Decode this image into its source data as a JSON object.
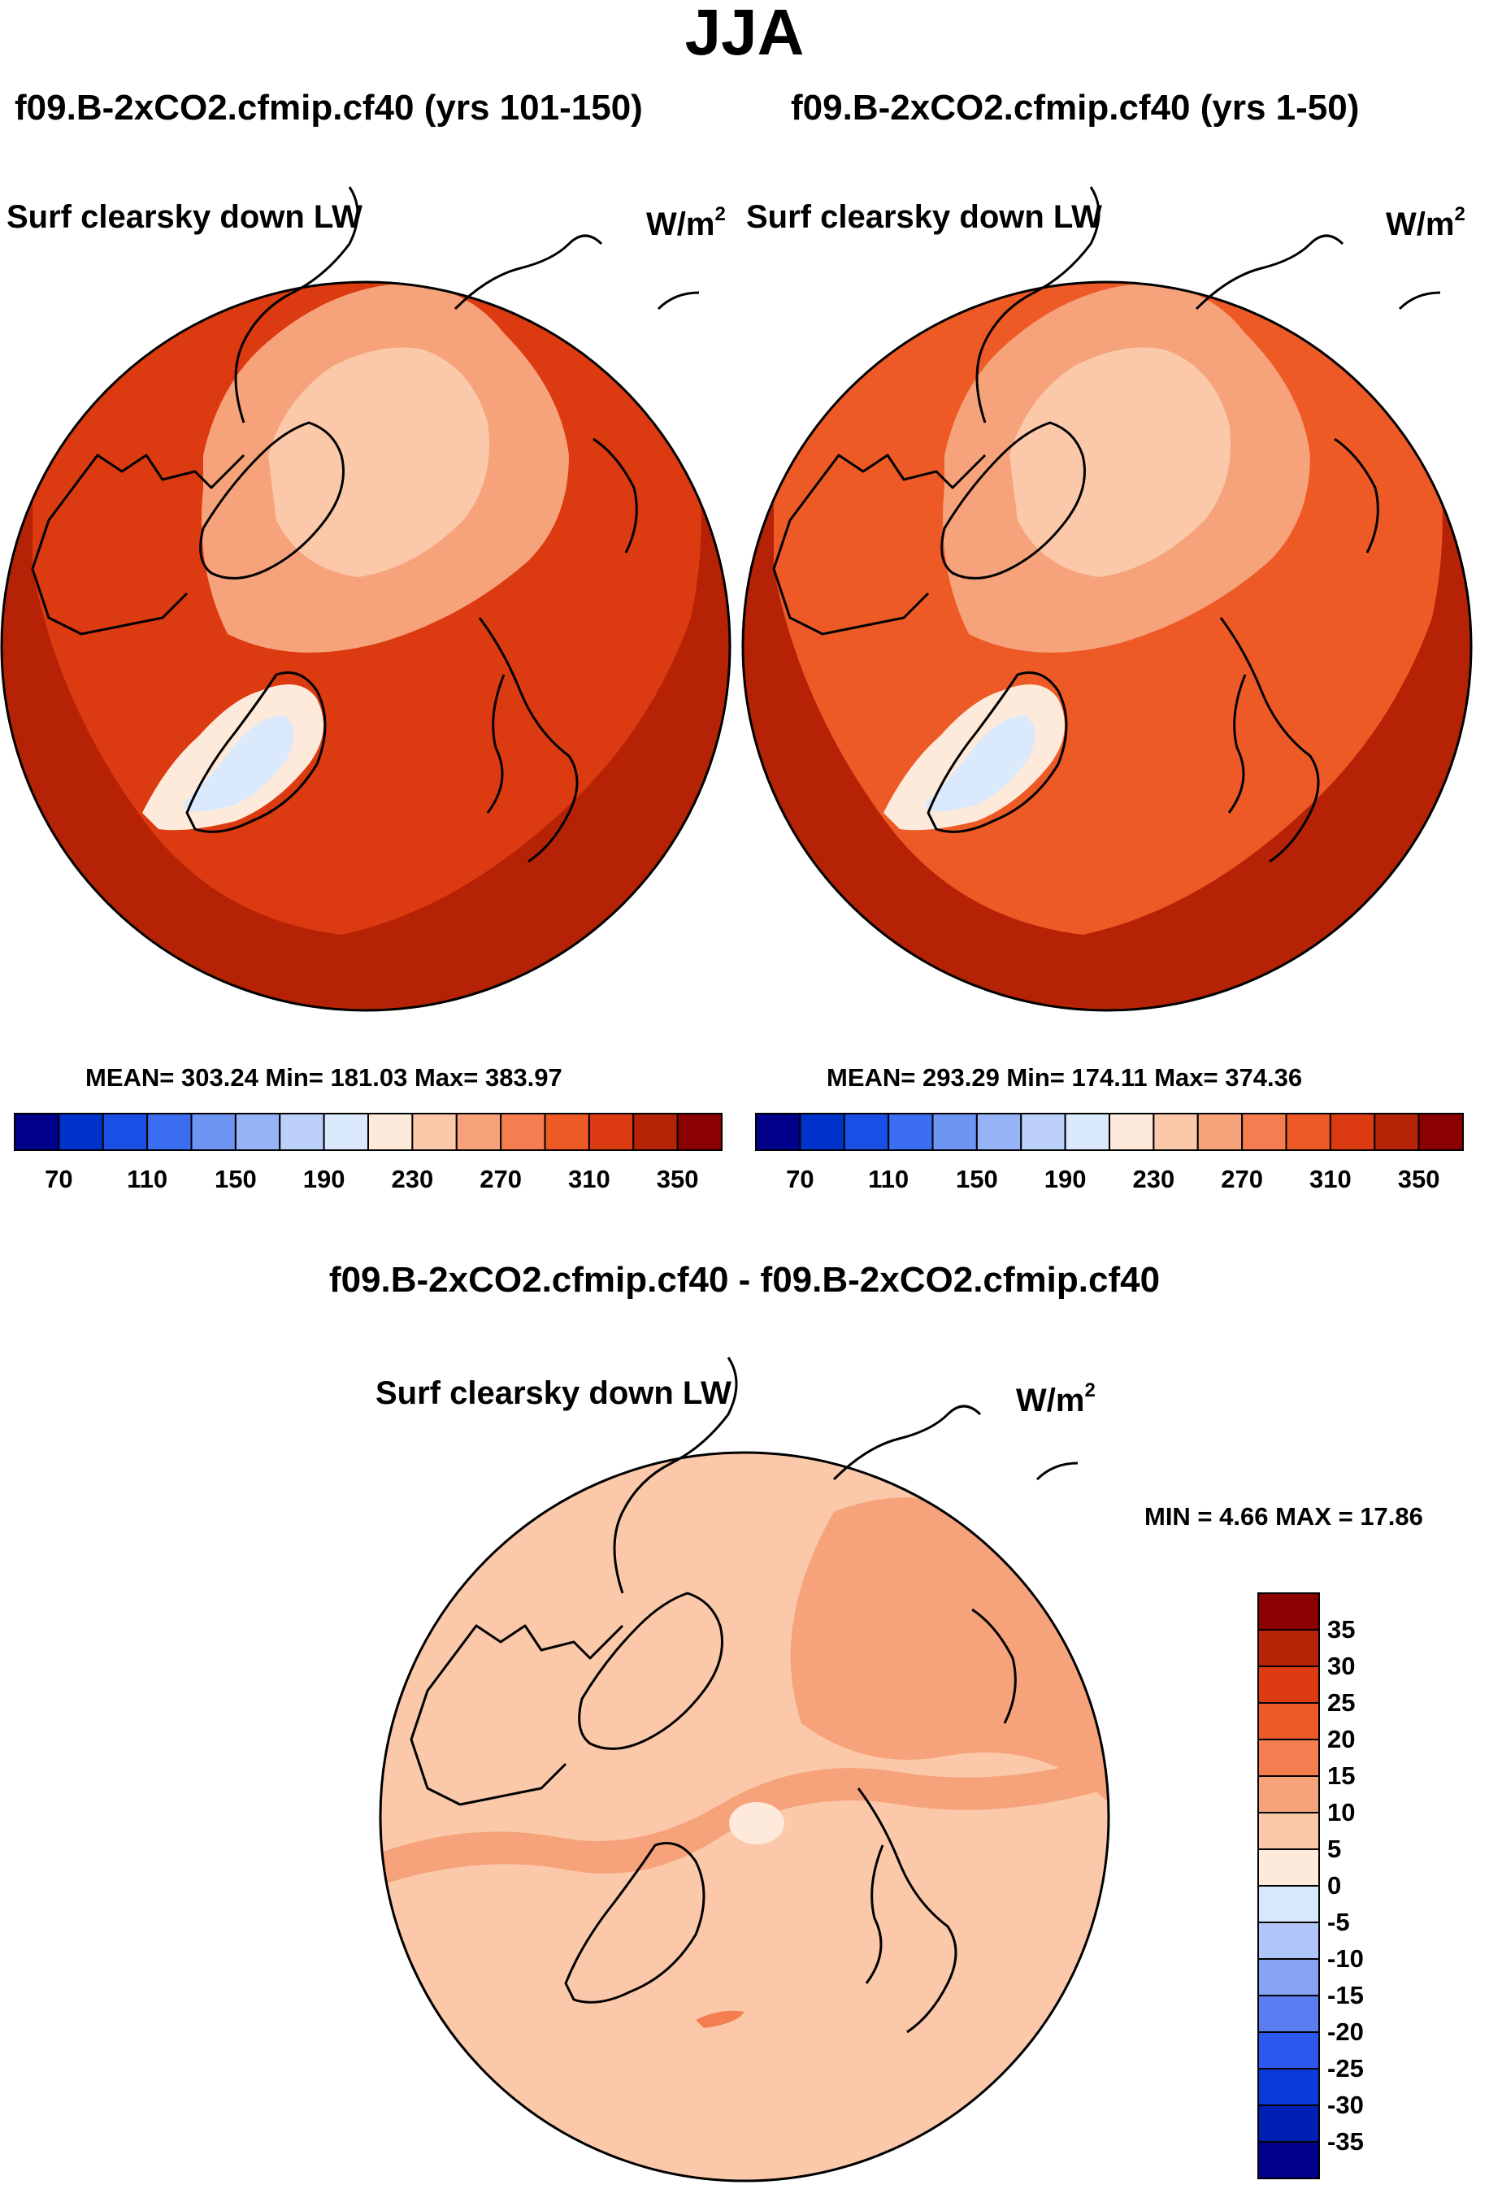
{
  "title": "JJA",
  "left_panel": {
    "case": "f09.B-2xCO2.cfmip.cf40 (yrs 101-150)",
    "field": "Surf clearsky down LW",
    "units_base": "W/m",
    "units_exp": "2",
    "stats": "MEAN= 303.24  Min= 181.03  Max= 383.97"
  },
  "right_panel": {
    "case": "f09.B-2xCO2.cfmip.cf40 (yrs 1-50)",
    "field": "Surf clearsky down LW",
    "units_base": "W/m",
    "units_exp": "2",
    "stats": "MEAN= 293.29  Min= 174.11  Max= 374.36"
  },
  "diff_panel": {
    "case": "f09.B-2xCO2.cfmip.cf40 - f09.B-2xCO2.cfmip.cf40",
    "field": "Surf clearsky down LW",
    "units_base": "W/m",
    "units_exp": "2",
    "stats": "MIN =   4.66 MAX =  17.86"
  },
  "colors": {
    "field_scale": [
      "#00008b",
      "#0033cc",
      "#1a4fe6",
      "#3b6ef0",
      "#6f95f2",
      "#96b3f5",
      "#bcd0fa",
      "#dbe9fc",
      "#fdeadb",
      "#fbc9aa",
      "#f6a37c",
      "#f47e50",
      "#ee5a26",
      "#dc3a10",
      "#b52205",
      "#8b0000"
    ],
    "diff_scale": [
      "#00008b",
      "#0020b4",
      "#0b3adb",
      "#2c58ee",
      "#5a7ef2",
      "#86a3f5",
      "#b0c6fa",
      "#d7e8fc",
      "#fdeadb",
      "#fbc9aa",
      "#f6a37c",
      "#f47e50",
      "#ee5a26",
      "#dc3a10",
      "#b52205",
      "#8b0000"
    ]
  },
  "chart_data": [
    {
      "type": "heatmap",
      "projection": "north-polar-stereographic",
      "title": "f09.B-2xCO2.cfmip.cf40 (yrs 101-150)",
      "field": "Surf clearsky down LW",
      "units": "W/m2",
      "mean": 303.24,
      "min": 181.03,
      "max": 383.97,
      "levels": [
        70,
        90,
        110,
        130,
        150,
        170,
        190,
        210,
        230,
        250,
        270,
        290,
        310,
        330,
        350
      ],
      "tick_labels": [
        "70",
        "110",
        "150",
        "190",
        "230",
        "270",
        "310",
        "350"
      ],
      "zones": [
        {
          "region": "mid-latitude ocean rim",
          "approx_value": 340
        },
        {
          "region": "subpolar band",
          "approx_value": 310
        },
        {
          "region": "arctic ocean",
          "approx_value": 255
        },
        {
          "region": "central arctic",
          "approx_value": 240
        },
        {
          "region": "greenland margin",
          "approx_value": 225
        },
        {
          "region": "greenland interior",
          "approx_value": 195
        }
      ]
    },
    {
      "type": "heatmap",
      "projection": "north-polar-stereographic",
      "title": "f09.B-2xCO2.cfmip.cf40 (yrs 1-50)",
      "field": "Surf clearsky down LW",
      "units": "W/m2",
      "mean": 293.29,
      "min": 174.11,
      "max": 374.36,
      "levels": [
        70,
        90,
        110,
        130,
        150,
        170,
        190,
        210,
        230,
        250,
        270,
        290,
        310,
        330,
        350
      ],
      "tick_labels": [
        "70",
        "110",
        "150",
        "190",
        "230",
        "270",
        "310",
        "350"
      ],
      "zones": [
        {
          "region": "mid-latitude ocean rim",
          "approx_value": 330
        },
        {
          "region": "subpolar band",
          "approx_value": 300
        },
        {
          "region": "arctic ocean",
          "approx_value": 250
        },
        {
          "region": "central arctic",
          "approx_value": 235
        },
        {
          "region": "greenland margin",
          "approx_value": 215
        },
        {
          "region": "greenland interior",
          "approx_value": 190
        }
      ]
    },
    {
      "type": "heatmap",
      "projection": "north-polar-stereographic",
      "title": "f09.B-2xCO2.cfmip.cf40 - f09.B-2xCO2.cfmip.cf40",
      "field": "Surf clearsky down LW",
      "units": "W/m2",
      "min": 4.66,
      "max": 17.86,
      "levels": [
        -35,
        -30,
        -25,
        -20,
        -15,
        -10,
        -5,
        0,
        5,
        10,
        15,
        20,
        25,
        30,
        35
      ],
      "tick_labels": [
        "35",
        "30",
        "25",
        "20",
        "15",
        "10",
        "5",
        "0",
        "-5",
        "-10",
        "-15",
        "-20",
        "-25",
        "-30",
        "-35"
      ],
      "zones": [
        {
          "region": "most of domain",
          "approx_value": 8
        },
        {
          "region": "continental bands",
          "approx_value": 12
        },
        {
          "region": "north pole spot",
          "approx_value": 3
        },
        {
          "region": "east greenland coast",
          "approx_value": 17
        }
      ]
    }
  ]
}
